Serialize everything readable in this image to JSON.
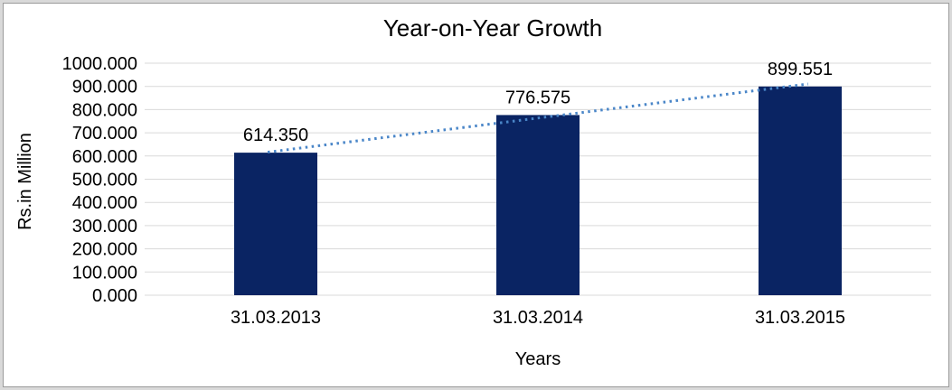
{
  "frame": {
    "outer_margin_color": "#d9d9d9",
    "border_color": "#9b9b9b",
    "background_color": "#ffffff"
  },
  "chart_data": {
    "type": "bar",
    "title": "Year-on-Year Growth",
    "xlabel": "Years",
    "ylabel": "Rs.in Million",
    "categories": [
      "31.03.2013",
      "31.03.2014",
      "31.03.2015"
    ],
    "values": [
      614.35,
      776.575,
      899.551
    ],
    "data_labels": [
      "614.350",
      "776.575",
      "899.551"
    ],
    "ylim": [
      0,
      1000
    ],
    "ytick_step": 100,
    "ytick_labels": [
      "1000.000",
      "900.000",
      "800.000",
      "700.000",
      "600.000",
      "500.000",
      "400.000",
      "300.000",
      "200.000",
      "100.000",
      "0.000"
    ],
    "grid": true,
    "legend": "none",
    "bar_color": "#0a2463",
    "gridline_color": "#d9d9d9",
    "text_color": "#000000",
    "trendline": {
      "type": "linear",
      "style": "dotted",
      "color": "#4a86c8"
    }
  }
}
